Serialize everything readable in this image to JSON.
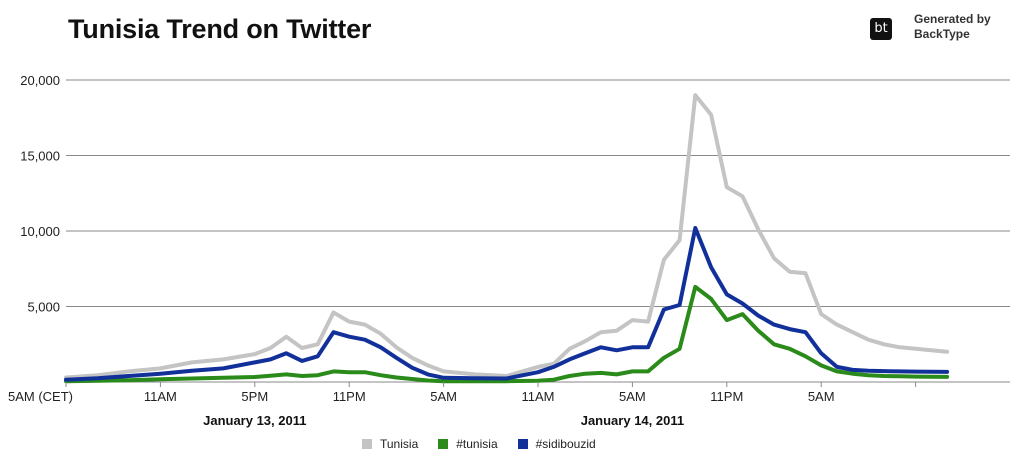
{
  "title": "Tunisia Trend on Twitter",
  "brand": {
    "badge": "bt",
    "line1": "Generated by",
    "line2": "BackType"
  },
  "colors": {
    "Tunisia": "#c4c4c4",
    "#tunisia": "#2a8a1a",
    "#sidibouzid": "#12309a"
  },
  "chart_data": {
    "type": "line",
    "title": "Tunisia Trend on Twitter",
    "ylim": [
      0,
      20000
    ],
    "yticks": [
      5000,
      10000,
      15000,
      20000
    ],
    "ytick_labels": [
      "5,000",
      "10,000",
      "15,000",
      "20,000"
    ],
    "xlim": [
      0,
      60
    ],
    "x_unit": "hour index, CET, starting Jan 13, 2011 5AM",
    "xticks": [
      0,
      6,
      12,
      18,
      24,
      30,
      36,
      42,
      48,
      54
    ],
    "xtick_labels": [
      "5AM (CET)",
      "11AM",
      "5PM",
      "11PM",
      "5AM",
      "11AM",
      "5AM",
      "11PM",
      "5AM",
      ""
    ],
    "date_labels": [
      {
        "x": 12,
        "label": "January 13, 2011"
      },
      {
        "x": 36,
        "label": "January 14, 2011"
      }
    ],
    "grid": true,
    "legend": "bottom",
    "series": [
      {
        "name": "Tunisia",
        "x": [
          0,
          2,
          4,
          6,
          8,
          10,
          12,
          13,
          14,
          15,
          16,
          17,
          18,
          19,
          20,
          21,
          22,
          23,
          24,
          26,
          28,
          30,
          31,
          32,
          33,
          34,
          35,
          36,
          37,
          38,
          39,
          40,
          41,
          42,
          43,
          44,
          45,
          46,
          47,
          48,
          49,
          50,
          51,
          52,
          53,
          54,
          55,
          56
        ],
        "values": [
          300,
          450,
          700,
          900,
          1300,
          1500,
          1850,
          2250,
          3000,
          2250,
          2500,
          4600,
          4000,
          3800,
          3200,
          2300,
          1600,
          1100,
          700,
          500,
          400,
          1000,
          1200,
          2200,
          2700,
          3300,
          3400,
          4100,
          4000,
          8100,
          9400,
          19000,
          17700,
          12900,
          12300,
          10100,
          8200,
          7300,
          7200,
          4500,
          3800,
          3300,
          2800,
          2500,
          2300,
          2200,
          2100,
          2000
        ]
      },
      {
        "name": "#tunisia",
        "x": [
          0,
          2,
          4,
          6,
          8,
          10,
          12,
          13,
          14,
          15,
          16,
          17,
          18,
          19,
          20,
          21,
          22,
          23,
          24,
          26,
          28,
          30,
          31,
          32,
          33,
          34,
          35,
          36,
          37,
          38,
          39,
          40,
          41,
          42,
          43,
          44,
          45,
          46,
          47,
          48,
          49,
          50,
          51,
          52,
          53,
          54,
          55,
          56
        ],
        "values": [
          50,
          80,
          120,
          180,
          230,
          280,
          330,
          420,
          500,
          400,
          450,
          700,
          650,
          650,
          450,
          300,
          200,
          100,
          50,
          50,
          50,
          80,
          150,
          400,
          550,
          600,
          500,
          700,
          700,
          1600,
          2200,
          6300,
          5500,
          4100,
          4500,
          3400,
          2500,
          2200,
          1700,
          1100,
          700,
          550,
          450,
          400,
          380,
          360,
          350,
          340
        ]
      },
      {
        "name": "#sidibouzid",
        "x": [
          0,
          2,
          4,
          6,
          8,
          10,
          12,
          13,
          14,
          15,
          16,
          17,
          18,
          19,
          20,
          21,
          22,
          23,
          24,
          26,
          28,
          30,
          31,
          32,
          33,
          34,
          35,
          36,
          37,
          38,
          39,
          40,
          41,
          42,
          43,
          44,
          45,
          46,
          47,
          48,
          49,
          50,
          51,
          52,
          53,
          54,
          55,
          56
        ],
        "values": [
          150,
          250,
          400,
          550,
          750,
          900,
          1300,
          1500,
          1900,
          1400,
          1700,
          3300,
          3000,
          2800,
          2300,
          1600,
          950,
          500,
          280,
          250,
          230,
          650,
          1000,
          1500,
          1900,
          2300,
          2100,
          2300,
          2300,
          4800,
          5100,
          10200,
          7600,
          5800,
          5200,
          4400,
          3800,
          3500,
          3300,
          1900,
          1000,
          800,
          750,
          720,
          700,
          690,
          680,
          670
        ]
      }
    ]
  }
}
